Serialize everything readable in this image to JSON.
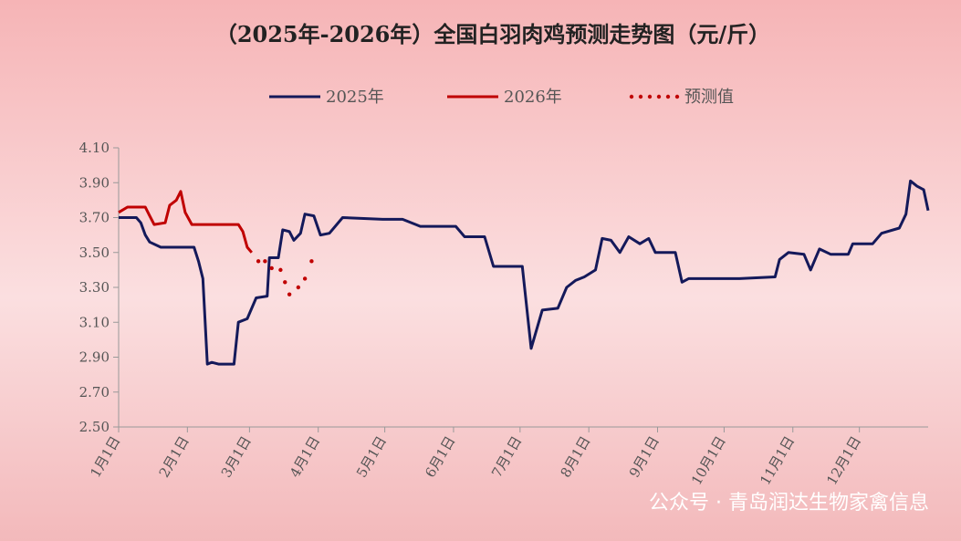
{
  "chart_data": {
    "type": "line",
    "title": "（2025年-2026年）全国白羽肉鸡预测走势图（元/斤）",
    "watermark": "公众号 · 青岛润达生物家禽信息",
    "xlim": [
      0,
      365
    ],
    "xticks": [
      {
        "value": 0,
        "label": "1月1日"
      },
      {
        "value": 31,
        "label": "2月1日"
      },
      {
        "value": 59,
        "label": "3月1日"
      },
      {
        "value": 90,
        "label": "4月1日"
      },
      {
        "value": 120,
        "label": "5月1日"
      },
      {
        "value": 151,
        "label": "6月1日"
      },
      {
        "value": 181,
        "label": "7月1日"
      },
      {
        "value": 212,
        "label": "8月1日"
      },
      {
        "value": 243,
        "label": "9月1日"
      },
      {
        "value": 273,
        "label": "10月1日"
      },
      {
        "value": 304,
        "label": "11月1日"
      },
      {
        "value": 334,
        "label": "12月1日"
      }
    ],
    "ylim": [
      2.5,
      4.1
    ],
    "yticks": [
      {
        "value": 2.5,
        "label": "2.50"
      },
      {
        "value": 2.7,
        "label": "2.70"
      },
      {
        "value": 2.9,
        "label": "2.90"
      },
      {
        "value": 3.1,
        "label": "3.10"
      },
      {
        "value": 3.3,
        "label": "3.30"
      },
      {
        "value": 3.5,
        "label": "3.50"
      },
      {
        "value": 3.7,
        "label": "3.70"
      },
      {
        "value": 3.9,
        "label": "3.90"
      },
      {
        "value": 4.1,
        "label": "4.10"
      }
    ],
    "series": [
      {
        "name": "2025年",
        "color": "#14195a",
        "style": "solid",
        "x": [
          0,
          8,
          10,
          12,
          14,
          19,
          34,
          36,
          38,
          40,
          42,
          45,
          52,
          54,
          58,
          62,
          67,
          68,
          72,
          74,
          77,
          79,
          82,
          84,
          88,
          91,
          95,
          101,
          119,
          128,
          134,
          136,
          152,
          156,
          165,
          169,
          182,
          186,
          191,
          198,
          202,
          206,
          210,
          215,
          218,
          222,
          226,
          230,
          235,
          239,
          242,
          251,
          254,
          257,
          280,
          296,
          298,
          302,
          309,
          312,
          316,
          321,
          329,
          331,
          340,
          344,
          352,
          355,
          357,
          360,
          363,
          365
        ],
        "values": [
          3.7,
          3.7,
          3.67,
          3.6,
          3.56,
          3.53,
          3.53,
          3.45,
          3.35,
          2.86,
          2.87,
          2.86,
          2.86,
          3.1,
          3.12,
          3.24,
          3.25,
          3.47,
          3.47,
          3.63,
          3.62,
          3.57,
          3.61,
          3.72,
          3.71,
          3.6,
          3.61,
          3.7,
          3.69,
          3.69,
          3.66,
          3.65,
          3.65,
          3.59,
          3.59,
          3.42,
          3.42,
          2.95,
          3.17,
          3.18,
          3.3,
          3.34,
          3.36,
          3.4,
          3.58,
          3.57,
          3.5,
          3.59,
          3.55,
          3.58,
          3.5,
          3.5,
          3.33,
          3.35,
          3.35,
          3.36,
          3.46,
          3.5,
          3.49,
          3.4,
          3.52,
          3.49,
          3.49,
          3.55,
          3.55,
          3.61,
          3.64,
          3.72,
          3.91,
          3.88,
          3.86,
          3.74
        ]
      },
      {
        "name": "2026年",
        "color": "#c00000",
        "style": "solid",
        "x": [
          0,
          4,
          12,
          14,
          16,
          21,
          23,
          26,
          28,
          30,
          33,
          54,
          56,
          58,
          60
        ],
        "values": [
          3.73,
          3.76,
          3.76,
          3.71,
          3.66,
          3.67,
          3.77,
          3.8,
          3.85,
          3.73,
          3.66,
          3.66,
          3.62,
          3.53,
          3.5
        ]
      },
      {
        "name": "预测值",
        "color": "#c00000",
        "style": "dotted",
        "x": [
          63,
          66,
          69,
          73,
          75,
          77,
          81,
          84,
          87
        ],
        "values": [
          3.45,
          3.45,
          3.41,
          3.4,
          3.33,
          3.26,
          3.3,
          3.35,
          3.45
        ]
      }
    ]
  }
}
